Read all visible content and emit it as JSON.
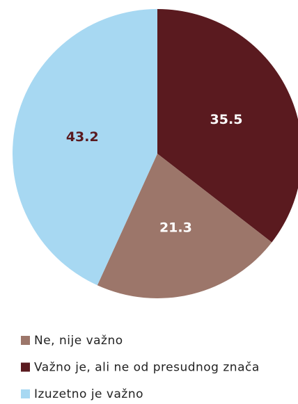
{
  "chart_data": {
    "type": "pie",
    "values": [
      35.5,
      21.3,
      43.2
    ],
    "colors": [
      "#5a1a1f",
      "#9c766a",
      "#a7d8f2"
    ],
    "label_colors": [
      "#ffffff",
      "#ffffff",
      "#5a1a1f"
    ],
    "legend": [
      {
        "label": "Ne, nije važno",
        "color": "#9c766a"
      },
      {
        "label": "Važno je, ali ne od presudnog znača",
        "color": "#5a1a1f"
      },
      {
        "label": "Izuzetno je važno",
        "color": "#a7d8f2"
      }
    ]
  }
}
